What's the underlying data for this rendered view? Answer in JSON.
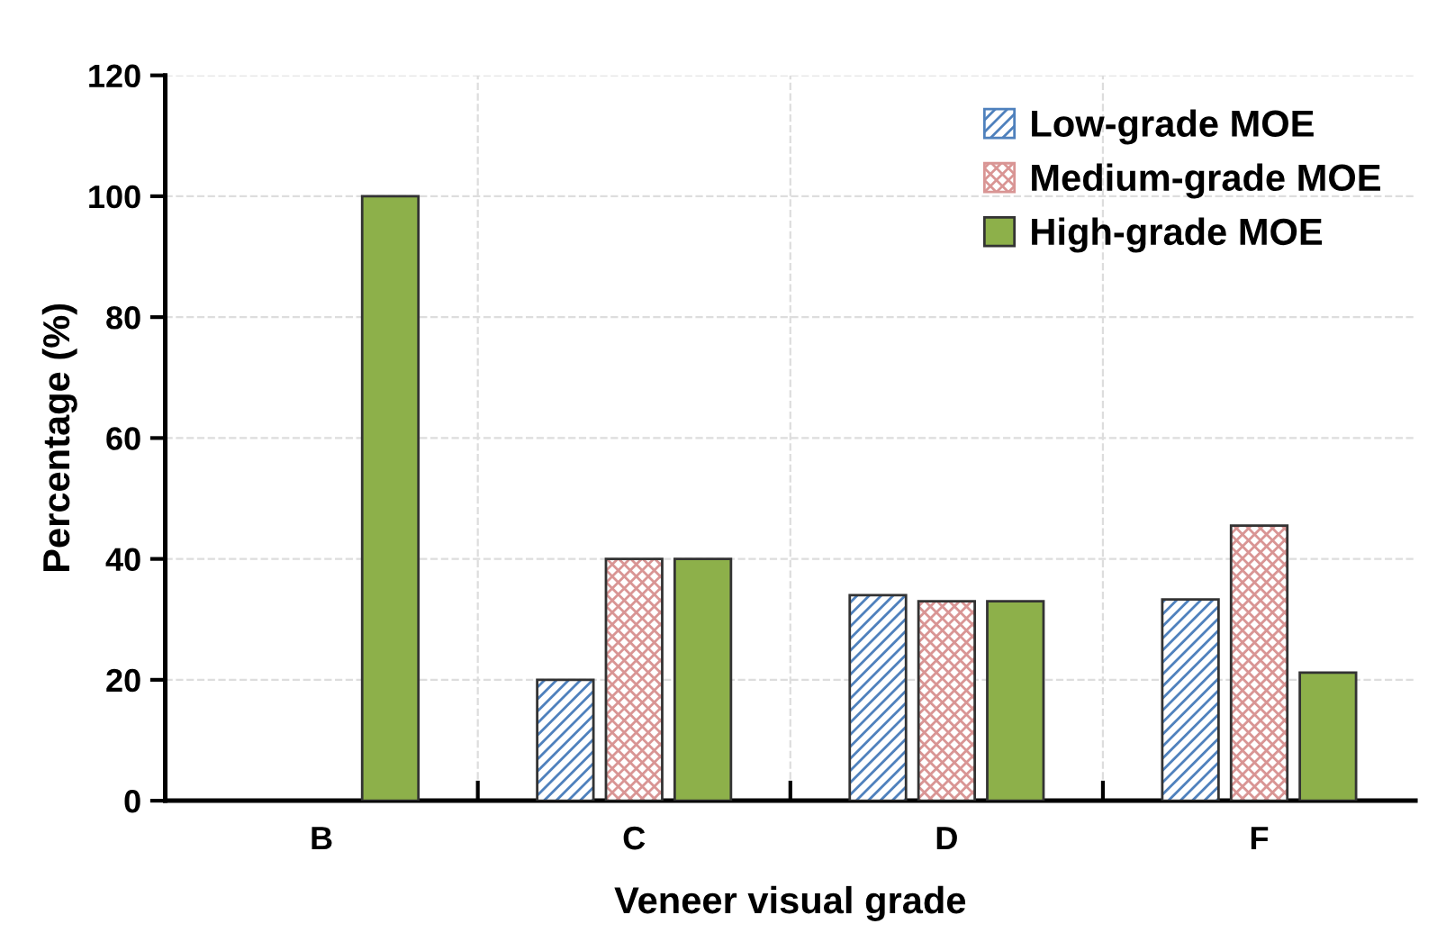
{
  "chart_data": {
    "type": "bar",
    "xlabel": "Veneer visual grade",
    "ylabel": "Percentage (%)",
    "categories": [
      "B",
      "C",
      "D",
      "F"
    ],
    "series": [
      {
        "name": "Low-grade MOE",
        "color": "#4f81bd",
        "values": [
          null,
          20,
          34,
          33.3
        ]
      },
      {
        "name": "Medium-grade MOE",
        "color": "#d99594",
        "values": [
          null,
          40,
          33,
          45.5
        ]
      },
      {
        "name": "High-grade MOE",
        "color": "#8db04a",
        "values": [
          100,
          40,
          33,
          21.2
        ]
      }
    ],
    "ylim": [
      0,
      120
    ],
    "yticks": [
      0,
      20,
      40,
      60,
      80,
      100,
      120
    ],
    "grid": true,
    "legend": "top right"
  }
}
